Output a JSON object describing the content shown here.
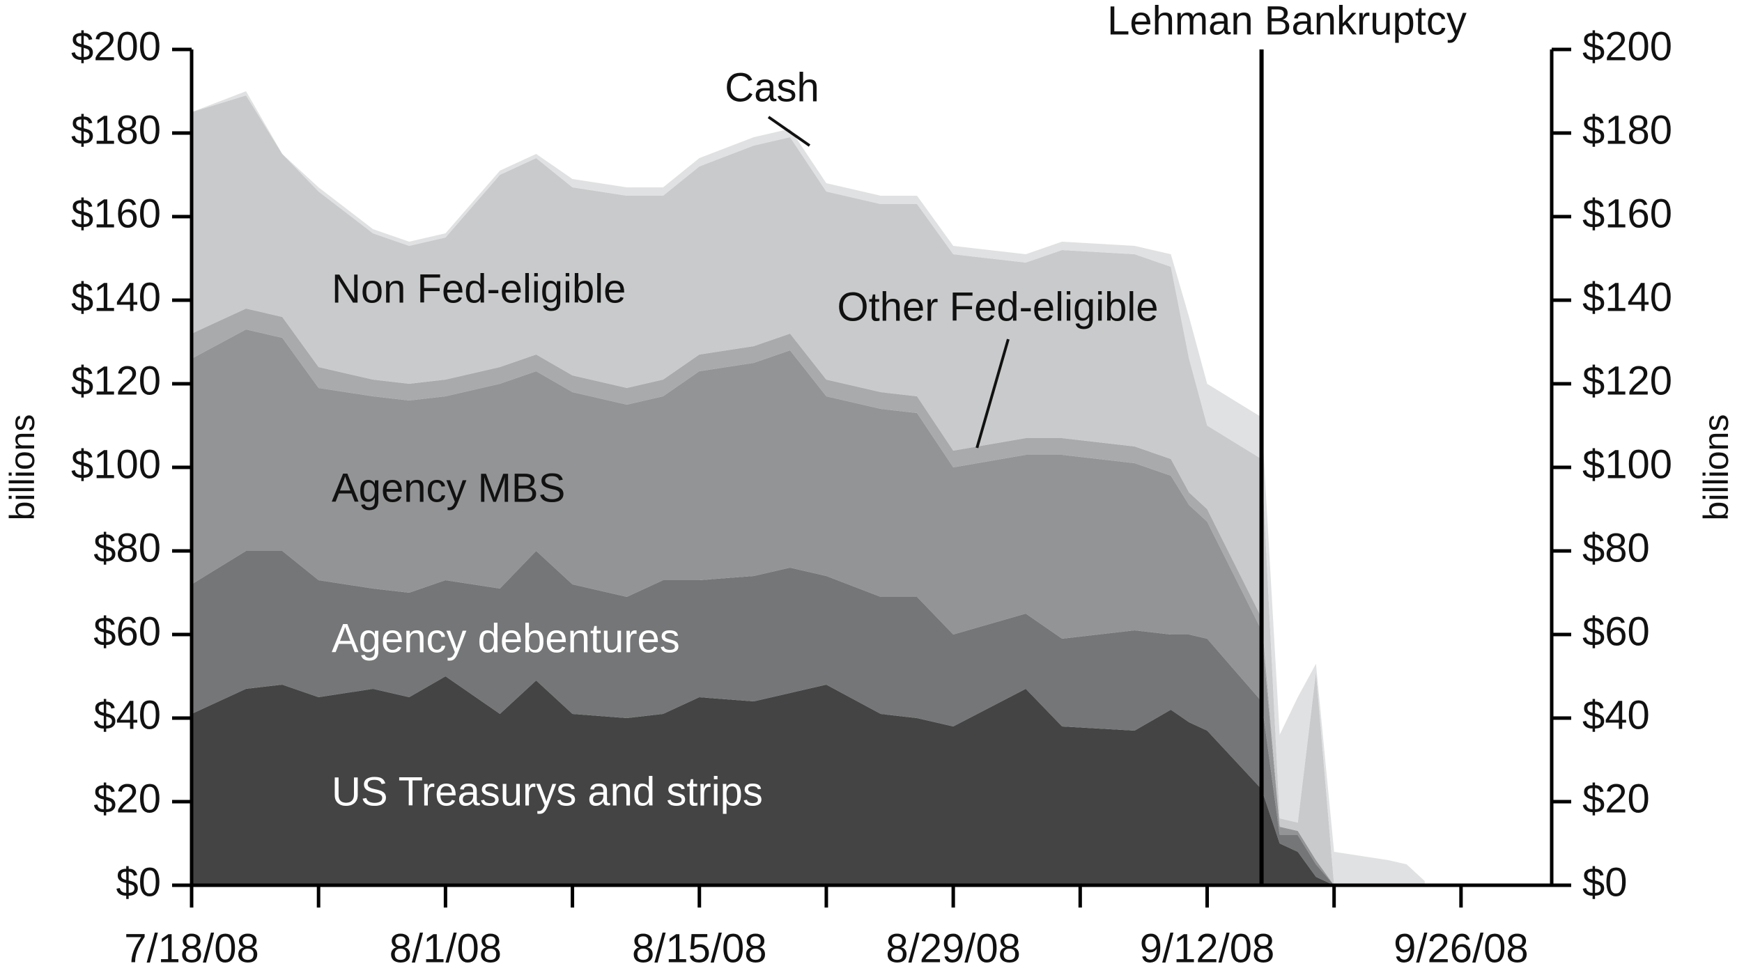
{
  "chart_data": {
    "type": "area",
    "stacked": true,
    "x_dates": [
      "7/18/08",
      "7/21/08",
      "7/23/08",
      "7/25/08",
      "7/28/08",
      "7/30/08",
      "8/1/08",
      "8/4/08",
      "8/6/08",
      "8/8/08",
      "8/11/08",
      "8/13/08",
      "8/15/08",
      "8/18/08",
      "8/20/08",
      "8/22/08",
      "8/25/08",
      "8/27/08",
      "8/29/08",
      "9/2/08",
      "9/4/08",
      "9/8/08",
      "9/10/08",
      "9/11/08",
      "9/12/08",
      "9/15/08",
      "9/16/08",
      "9/17/08",
      "9/18/08",
      "9/19/08",
      "9/22/08",
      "9/23/08",
      "9/24/08"
    ],
    "x_tick_labels": [
      "7/18/08",
      "8/1/08",
      "8/15/08",
      "8/29/08",
      "9/12/08",
      "9/26/08"
    ],
    "series": [
      {
        "name": "US Treasurys and strips",
        "color": "#444444",
        "label_color": "#ffffff",
        "values": [
          41,
          47,
          48,
          45,
          47,
          45,
          50,
          41,
          49,
          41,
          40,
          41,
          45,
          44,
          46,
          48,
          41,
          40,
          38,
          47,
          38,
          37,
          42,
          39,
          37,
          23,
          10,
          8,
          2,
          0,
          0,
          0,
          0
        ]
      },
      {
        "name": "Agency debentures",
        "color": "#757677",
        "label_color": "#ffffff",
        "values": [
          31,
          33,
          32,
          28,
          24,
          25,
          23,
          30,
          31,
          31,
          29,
          32,
          28,
          30,
          30,
          26,
          28,
          29,
          22,
          18,
          21,
          24,
          18,
          21,
          22,
          21,
          2,
          4,
          3,
          0,
          0,
          0,
          0
        ]
      },
      {
        "name": "Agency MBS",
        "color": "#939495",
        "label_color": "#111111",
        "values": [
          54,
          53,
          51,
          46,
          46,
          46,
          44,
          49,
          43,
          46,
          46,
          44,
          50,
          51,
          52,
          43,
          45,
          44,
          40,
          38,
          44,
          40,
          38,
          31,
          28,
          17,
          2,
          1,
          1,
          0,
          0,
          0,
          0
        ]
      },
      {
        "name": "Other Fed-eligible",
        "color": "#a9aaab",
        "label_color": "#111111",
        "values": [
          6,
          5,
          5,
          5,
          4,
          4,
          4,
          4,
          4,
          4,
          4,
          4,
          4,
          4,
          4,
          4,
          4,
          4,
          4,
          4,
          4,
          4,
          4,
          3,
          3,
          3,
          0,
          0,
          0,
          0,
          0,
          0,
          0
        ]
      },
      {
        "name": "Non Fed-eligible",
        "color": "#c9cacb",
        "label_color": "#111111",
        "values": [
          53,
          51,
          39,
          42,
          35,
          33,
          34,
          46,
          47,
          45,
          46,
          44,
          45,
          48,
          47,
          45,
          45,
          46,
          47,
          42,
          45,
          46,
          46,
          32,
          20,
          38,
          2,
          2,
          45,
          0,
          0,
          0,
          0
        ]
      },
      {
        "name": "Cash",
        "color": "#e0e1e2",
        "label_color": "#111111",
        "values": [
          0,
          1,
          0,
          1,
          1,
          1,
          1,
          1,
          1,
          2,
          2,
          2,
          2,
          2,
          2,
          2,
          2,
          2,
          2,
          2,
          2,
          2,
          3,
          10,
          10,
          10,
          20,
          30,
          2,
          8,
          6,
          5,
          1
        ]
      }
    ],
    "ylim": [
      0,
      200
    ],
    "y_tick_labels": [
      "$0",
      "$20",
      "$40",
      "$60",
      "$80",
      "$100",
      "$120",
      "$140",
      "$160",
      "$180",
      "$200"
    ],
    "ylabel": "billions",
    "ylabel_right": "billions",
    "annotations": [
      {
        "text": "Lehman Bankruptcy",
        "date": "9/15/08"
      },
      {
        "text": "Cash",
        "date": "8/21/08",
        "value": 178
      },
      {
        "text": "Other Fed-eligible",
        "date": "8/30/08",
        "value": 104
      }
    ],
    "grid": false,
    "legend": "none"
  }
}
